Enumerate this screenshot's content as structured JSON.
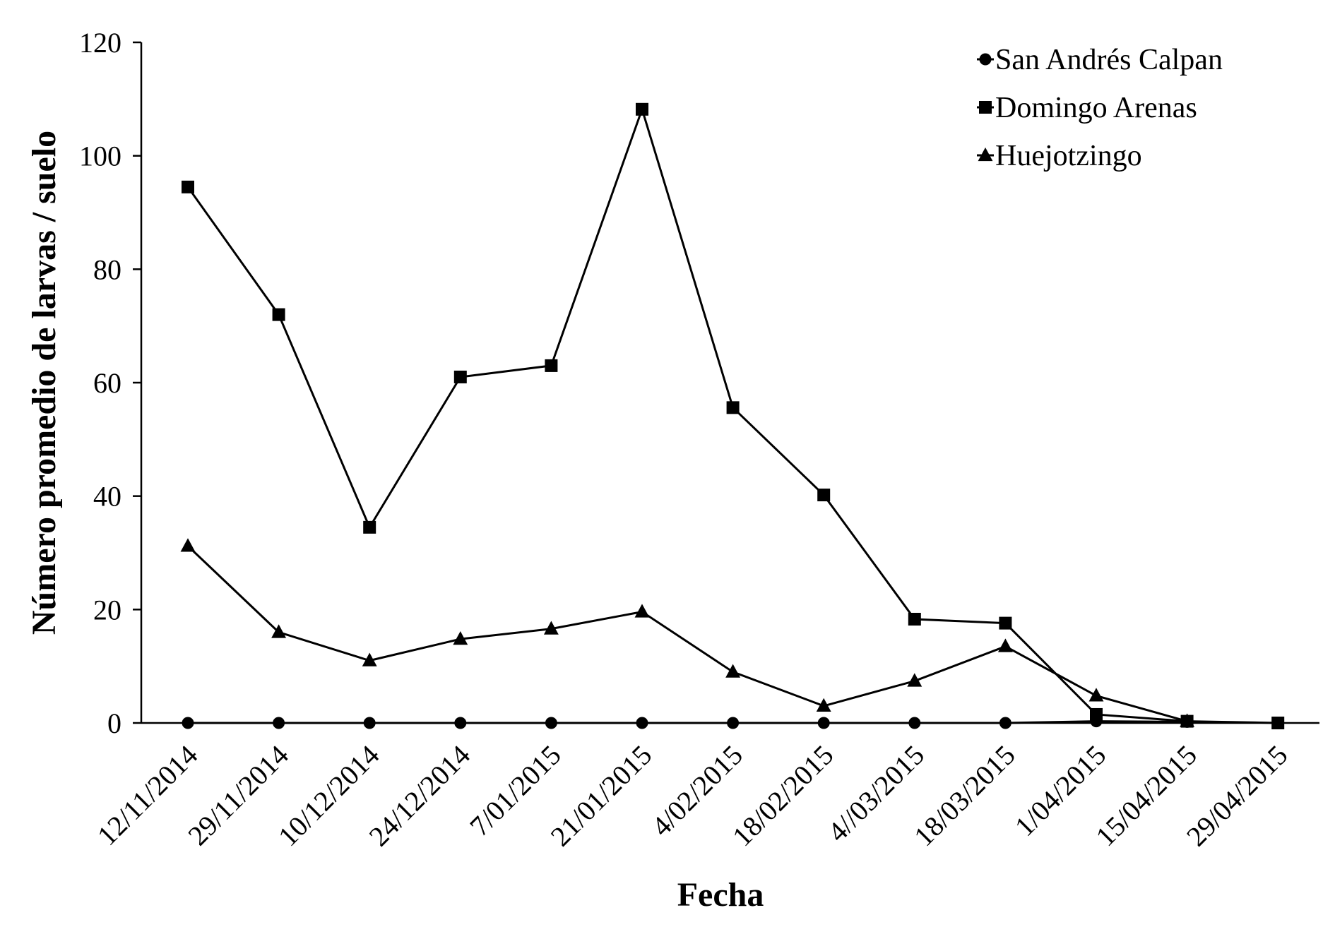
{
  "chart_data": {
    "type": "line",
    "xlabel": "Fecha",
    "ylabel": "Número promedio de larvas / suelo",
    "ylim": [
      0,
      120
    ],
    "yticks": [
      0,
      20,
      40,
      60,
      80,
      100,
      120
    ],
    "grid": false,
    "legend_position": "top-right",
    "categories": [
      "12/11/2014",
      "29/11/2014",
      "10/12/2014",
      "24/12/2014",
      "7/01/2015",
      "21/01/2015",
      "4/02/2015",
      "18/02/2015",
      "4//03/2015",
      "18/03/2015",
      "1/04/2015",
      "15/04/2015",
      "29/04/2015"
    ],
    "series": [
      {
        "name": "San Andrés Calpan",
        "marker": "circle",
        "color": "#000000",
        "values": [
          0,
          0,
          0,
          0,
          0,
          0,
          0,
          0,
          0,
          0,
          0.3,
          0.2,
          null
        ]
      },
      {
        "name": "Domingo Arenas",
        "marker": "square",
        "color": "#000000",
        "values": [
          94.5,
          72,
          34.5,
          61,
          63,
          108.2,
          55.6,
          40.2,
          18.3,
          17.6,
          1.5,
          0.3,
          0
        ]
      },
      {
        "name": "Huejotzingo",
        "marker": "triangle",
        "color": "#000000",
        "values": [
          31.2,
          16,
          11,
          14.8,
          16.6,
          19.6,
          9,
          3,
          7.4,
          13.5,
          4.8,
          0.3,
          null
        ]
      }
    ]
  }
}
